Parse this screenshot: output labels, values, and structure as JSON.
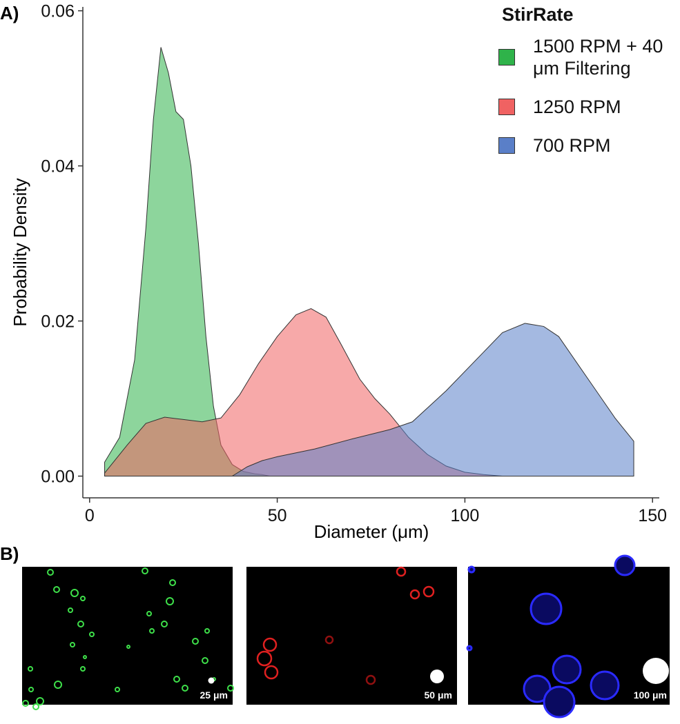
{
  "chart_data": {
    "type": "area",
    "xlabel": "Diameter (μm)",
    "ylabel": "Probability Density",
    "legend_title": "StirRate",
    "xlim": [
      -1.8,
      151.8
    ],
    "ylim": [
      -0.0028,
      0.0605
    ],
    "xticks": [
      0,
      50,
      100,
      150
    ],
    "yticks": [
      {
        "value": 0,
        "label": "0.00"
      },
      0.02,
      0.04,
      0.06
    ],
    "series": [
      {
        "name": "1500 RPM + 40 μm Filtering",
        "color": "#2fb34a",
        "x": [
          4,
          8,
          12,
          15,
          17,
          19,
          21,
          23,
          25,
          27,
          29,
          31,
          33,
          35,
          38,
          41,
          44,
          46,
          48
        ],
        "values": [
          0.0018,
          0.005,
          0.015,
          0.032,
          0.046,
          0.0553,
          0.052,
          0.047,
          0.046,
          0.04,
          0.03,
          0.018,
          0.009,
          0.004,
          0.0015,
          0.0006,
          0.0003,
          0.0002,
          0
        ]
      },
      {
        "name": "1250 RPM",
        "color": "#f06262",
        "x": [
          4,
          10,
          15,
          20,
          25,
          30,
          35,
          40,
          45,
          50,
          55,
          59,
          63,
          67,
          72,
          76,
          80,
          85,
          90,
          95,
          100,
          105,
          110
        ],
        "values": [
          0.0004,
          0.004,
          0.0068,
          0.0076,
          0.0073,
          0.007,
          0.0075,
          0.0105,
          0.0145,
          0.018,
          0.0208,
          0.0216,
          0.0205,
          0.017,
          0.0125,
          0.01,
          0.008,
          0.005,
          0.0028,
          0.0013,
          0.0005,
          0.0002,
          0
        ]
      },
      {
        "name": "700 RPM",
        "color": "#5a7fc8",
        "x": [
          38,
          42,
          46,
          50,
          60,
          70,
          80,
          86,
          95,
          105,
          110,
          116,
          121,
          125,
          130,
          135,
          140,
          145
        ],
        "values": [
          0,
          0.0012,
          0.002,
          0.0025,
          0.0035,
          0.0048,
          0.006,
          0.007,
          0.011,
          0.016,
          0.0185,
          0.0197,
          0.0193,
          0.018,
          0.0145,
          0.011,
          0.0075,
          0.0045
        ]
      }
    ]
  },
  "panels": {
    "a_label": "A)",
    "b_label": "B)"
  },
  "images": [
    {
      "scale_label": "25 μm"
    },
    {
      "scale_label": "50 μm"
    },
    {
      "scale_label": "100 μm"
    }
  ]
}
